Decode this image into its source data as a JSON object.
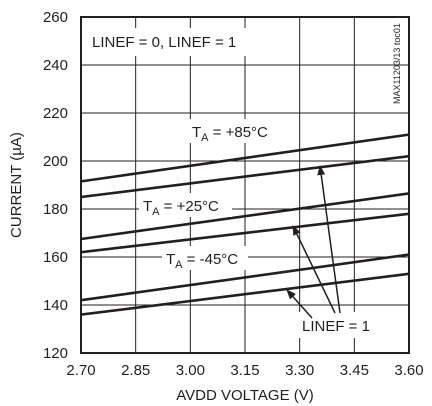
{
  "chart_data": {
    "type": "line",
    "xlabel": "AVDD VOLTAGE (V)",
    "ylabel": "CURRENT (µA)",
    "xlim": [
      2.7,
      3.6
    ],
    "ylim": [
      120,
      260
    ],
    "x_ticks": [
      "2.70",
      "2.85",
      "3.00",
      "3.15",
      "3.30",
      "3.45",
      "3.60"
    ],
    "y_ticks": [
      "120",
      "140",
      "160",
      "180",
      "200",
      "220",
      "240",
      "260"
    ],
    "grid": true,
    "chart_id": "MAX11203/13 toc01",
    "condition_label": "LINEF = 0, LINEF = 1",
    "series": [
      {
        "name": "",
        "x": [
          2.7,
          3.6
        ],
        "y": [
          191.5,
          211
        ]
      },
      {
        "name": "",
        "x": [
          2.7,
          3.6
        ],
        "y": [
          185,
          202
        ]
      },
      {
        "name": "",
        "x": [
          2.7,
          3.6
        ],
        "y": [
          167.5,
          186.5
        ]
      },
      {
        "name": "",
        "x": [
          2.7,
          3.6
        ],
        "y": [
          162,
          178
        ]
      },
      {
        "name": "",
        "x": [
          2.7,
          3.6
        ],
        "y": [
          142,
          161
        ]
      },
      {
        "name": "",
        "x": [
          2.7,
          3.6
        ],
        "y": [
          136,
          153
        ]
      }
    ],
    "annotations": [
      {
        "id": "ta85",
        "prefix": "T",
        "sub": "A",
        "suffix": " = +85°C"
      },
      {
        "id": "ta25",
        "prefix": "T",
        "sub": "A",
        "suffix": " = +25°C"
      },
      {
        "id": "tam45",
        "prefix": "T",
        "sub": "A",
        "suffix": " = -45°C"
      },
      {
        "id": "linef",
        "text": "LINEF = 1"
      }
    ]
  }
}
